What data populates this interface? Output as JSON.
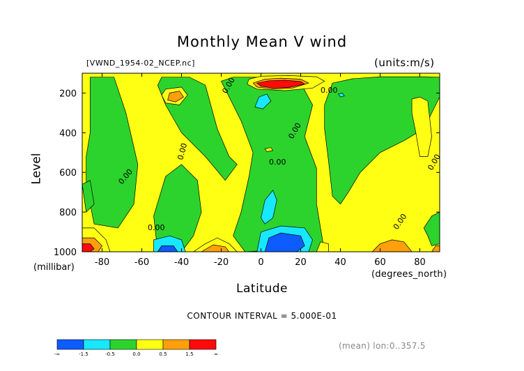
{
  "title": "Monthly Mean V wind",
  "dataset_label": "[VWND_1954-02_NCEP.nc]",
  "units_label": "(units:m/s)",
  "contour_interval": "CONTOUR INTERVAL = 5.000E-01",
  "mean_note": "(mean) lon:0..357.5",
  "chart_data": {
    "type": "heatmap",
    "title": "Monthly Mean V wind",
    "xlabel": "Latitude",
    "xunit": "(degrees_north)",
    "ylabel": "Level",
    "yunit": "(millibar)",
    "xlim": [
      -90,
      90
    ],
    "ylim": [
      1000,
      100
    ],
    "y_inverted": true,
    "x_ticks": [
      -80,
      -60,
      -40,
      -20,
      0,
      20,
      40,
      60,
      80
    ],
    "x_tick_labels": [
      "-80",
      "-60",
      "-40",
      "-20",
      "0",
      "20",
      "40",
      "60",
      "80"
    ],
    "y_ticks": [
      200,
      400,
      600,
      800,
      1000
    ],
    "y_tick_labels": [
      "200",
      "400",
      "600",
      "800",
      "1000"
    ],
    "legend": {
      "boundaries": [
        "-∞",
        "-1.5",
        "-0.5",
        "0.0",
        "0.5",
        "1.5",
        "∞"
      ],
      "colors": [
        "#0c5cff",
        "#18e8ff",
        "#2dd32d",
        "#ffff14",
        "#ffa00a",
        "#ff0a0a"
      ]
    },
    "contour_labels": [
      "0.00",
      "0.00",
      "0.00",
      "0.00",
      "0.00",
      "0.00",
      "0.00",
      "0.00",
      "0.00"
    ],
    "regions": [
      {
        "class": 2,
        "points": [
          [
            -86,
            120
          ],
          [
            -74,
            120
          ],
          [
            -68,
            300
          ],
          [
            -62,
            560
          ],
          [
            -64,
            760
          ],
          [
            -72,
            880
          ],
          [
            -84,
            860
          ],
          [
            -86,
            760
          ],
          [
            -88,
            640
          ],
          [
            -88,
            520
          ],
          [
            -86,
            400
          ],
          [
            -86,
            260
          ]
        ]
      },
      {
        "class": 2,
        "points": [
          [
            -50,
            120
          ],
          [
            -36,
            120
          ],
          [
            -28,
            160
          ],
          [
            -22,
            380
          ],
          [
            -16,
            520
          ],
          [
            -12,
            560
          ],
          [
            -18,
            640
          ],
          [
            -28,
            520
          ],
          [
            -40,
            400
          ],
          [
            -48,
            260
          ],
          [
            -52,
            160
          ]
        ]
      },
      {
        "class": 3,
        "points": [
          [
            -48,
            180
          ],
          [
            -40,
            170
          ],
          [
            -37,
            210
          ],
          [
            -41,
            260
          ],
          [
            -48,
            250
          ],
          [
            -50,
            210
          ]
        ]
      },
      {
        "class": 4,
        "points": [
          [
            -46,
            200
          ],
          [
            -41,
            190
          ],
          [
            -39,
            220
          ],
          [
            -43,
            245
          ],
          [
            -47,
            235
          ]
        ]
      },
      {
        "class": 2,
        "points": [
          [
            -20,
            140
          ],
          [
            -14,
            120
          ],
          [
            8,
            120
          ],
          [
            20,
            150
          ],
          [
            26,
            260
          ],
          [
            22,
            420
          ],
          [
            28,
            580
          ],
          [
            28,
            760
          ],
          [
            30,
            880
          ],
          [
            32,
            1000
          ],
          [
            20,
            1000
          ],
          [
            10,
            990
          ],
          [
            -8,
            1000
          ],
          [
            -14,
            920
          ],
          [
            -10,
            800
          ],
          [
            -6,
            620
          ],
          [
            -4,
            500
          ],
          [
            -10,
            340
          ],
          [
            -16,
            220
          ]
        ]
      },
      {
        "class": 2,
        "points": [
          [
            -52,
            1000
          ],
          [
            -54,
            820
          ],
          [
            -48,
            620
          ],
          [
            -40,
            560
          ],
          [
            -32,
            640
          ],
          [
            -30,
            800
          ],
          [
            -34,
            920
          ],
          [
            -40,
            1000
          ]
        ]
      },
      {
        "class": 1,
        "points": [
          [
            -54,
            1000
          ],
          [
            -54,
            940
          ],
          [
            -46,
            920
          ],
          [
            -40,
            940
          ],
          [
            -38,
            1000
          ]
        ]
      },
      {
        "class": 0,
        "points": [
          [
            -52,
            1000
          ],
          [
            -50,
            970
          ],
          [
            -44,
            970
          ],
          [
            -42,
            1000
          ]
        ]
      },
      {
        "class": 3,
        "points": [
          [
            -34,
            1000
          ],
          [
            -28,
            960
          ],
          [
            -22,
            930
          ],
          [
            -16,
            960
          ],
          [
            -12,
            1000
          ]
        ]
      },
      {
        "class": 4,
        "points": [
          [
            -30,
            1000
          ],
          [
            -24,
            965
          ],
          [
            -18,
            975
          ],
          [
            -16,
            1000
          ]
        ]
      },
      {
        "class": 3,
        "points": [
          [
            -6,
            130
          ],
          [
            0,
            115
          ],
          [
            14,
            112
          ],
          [
            28,
            118
          ],
          [
            32,
            140
          ],
          [
            26,
            175
          ],
          [
            12,
            188
          ],
          [
            -2,
            180
          ],
          [
            -7,
            155
          ]
        ]
      },
      {
        "class": 4,
        "points": [
          [
            -4,
            150
          ],
          [
            2,
            130
          ],
          [
            10,
            125
          ],
          [
            20,
            130
          ],
          [
            24,
            150
          ],
          [
            16,
            175
          ],
          [
            6,
            180
          ],
          [
            -2,
            170
          ]
        ]
      },
      {
        "class": 5,
        "points": [
          [
            -2,
            150
          ],
          [
            4,
            138
          ],
          [
            12,
            135
          ],
          [
            20,
            142
          ],
          [
            22,
            155
          ],
          [
            14,
            172
          ],
          [
            6,
            175
          ],
          [
            0,
            165
          ]
        ]
      },
      {
        "class": 3,
        "points": [
          [
            2,
            480
          ],
          [
            5,
            475
          ],
          [
            6,
            490
          ],
          [
            3,
            495
          ]
        ]
      },
      {
        "class": 1,
        "points": [
          [
            -3,
            270
          ],
          [
            -1,
            220
          ],
          [
            3,
            205
          ],
          [
            5,
            240
          ],
          [
            1,
            280
          ]
        ]
      },
      {
        "class": 1,
        "points": [
          [
            0,
            830
          ],
          [
            2,
            740
          ],
          [
            6,
            690
          ],
          [
            8,
            740
          ],
          [
            6,
            830
          ],
          [
            2,
            860
          ]
        ]
      },
      {
        "class": 1,
        "points": [
          [
            -2,
            1000
          ],
          [
            0,
            900
          ],
          [
            10,
            870
          ],
          [
            22,
            880
          ],
          [
            26,
            940
          ],
          [
            24,
            1000
          ]
        ]
      },
      {
        "class": 0,
        "points": [
          [
            2,
            1000
          ],
          [
            4,
            930
          ],
          [
            10,
            905
          ],
          [
            20,
            920
          ],
          [
            22,
            970
          ],
          [
            18,
            1000
          ]
        ]
      },
      {
        "class": 3,
        "points": [
          [
            28,
            1000
          ],
          [
            30,
            950
          ],
          [
            34,
            960
          ],
          [
            34,
            1000
          ]
        ]
      },
      {
        "class": 2,
        "points": [
          [
            36,
            150
          ],
          [
            46,
            128
          ],
          [
            60,
            118
          ],
          [
            82,
            118
          ],
          [
            90,
            120
          ],
          [
            90,
            220
          ],
          [
            86,
            300
          ],
          [
            82,
            380
          ],
          [
            72,
            440
          ],
          [
            60,
            500
          ],
          [
            50,
            600
          ],
          [
            44,
            700
          ],
          [
            40,
            760
          ],
          [
            36,
            720
          ],
          [
            34,
            540
          ],
          [
            32,
            380
          ],
          [
            32,
            260
          ]
        ]
      },
      {
        "class": 1,
        "points": [
          [
            39,
            205
          ],
          [
            41,
            200
          ],
          [
            42,
            215
          ],
          [
            40,
            220
          ]
        ]
      },
      {
        "class": 3,
        "points": [
          [
            76,
            230
          ],
          [
            80,
            220
          ],
          [
            84,
            240
          ],
          [
            86,
            420
          ],
          [
            84,
            520
          ],
          [
            80,
            520
          ],
          [
            78,
            400
          ],
          [
            76,
            300
          ]
        ]
      },
      {
        "class": 2,
        "points": [
          [
            82,
            880
          ],
          [
            86,
            820
          ],
          [
            90,
            800
          ],
          [
            90,
            960
          ],
          [
            86,
            970
          ],
          [
            84,
            920
          ]
        ]
      },
      {
        "class": 2,
        "points": [
          [
            -90,
            660
          ],
          [
            -86,
            640
          ],
          [
            -84,
            760
          ],
          [
            -88,
            800
          ]
        ]
      },
      {
        "class": 3,
        "points": [
          [
            -90,
            880
          ],
          [
            -84,
            880
          ],
          [
            -78,
            940
          ],
          [
            -76,
            1000
          ],
          [
            -90,
            1000
          ]
        ]
      },
      {
        "class": 4,
        "points": [
          [
            -90,
            930
          ],
          [
            -84,
            930
          ],
          [
            -80,
            970
          ],
          [
            -82,
            1000
          ],
          [
            -90,
            1000
          ]
        ]
      },
      {
        "class": 5,
        "points": [
          [
            -90,
            960
          ],
          [
            -86,
            960
          ],
          [
            -84,
            985
          ],
          [
            -86,
            1000
          ],
          [
            -90,
            1000
          ]
        ]
      },
      {
        "class": 4,
        "points": [
          [
            56,
            1000
          ],
          [
            60,
            960
          ],
          [
            66,
            940
          ],
          [
            72,
            950
          ],
          [
            76,
            1000
          ]
        ]
      },
      {
        "class": 4,
        "points": [
          [
            86,
            1000
          ],
          [
            88,
            970
          ],
          [
            90,
            970
          ],
          [
            90,
            1000
          ]
        ]
      }
    ]
  }
}
